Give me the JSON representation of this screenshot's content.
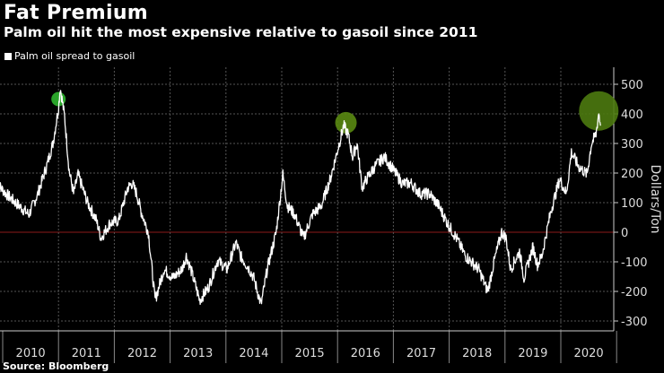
{
  "chart_data": {
    "type": "line",
    "title": "Fat Premium",
    "subtitle": "Palm oil hit the most expensive relative to gasoil since 2011",
    "ylabel": "Dollars/Ton",
    "xlabel": "",
    "ylim": [
      -330,
      560
    ],
    "xlim": [
      2009.9,
      2021.0
    ],
    "y_ticks": [
      500,
      400,
      300,
      200,
      100,
      0,
      -100,
      -200,
      -300
    ],
    "x_tick_labels": [
      "2010",
      "2011",
      "2012",
      "2013",
      "2014",
      "2015",
      "2016",
      "2017",
      "2018",
      "2019",
      "2020"
    ],
    "grid": true,
    "legend": {
      "position": "top-left",
      "entries": [
        "Palm oil spread to gasoil"
      ]
    },
    "series": [
      {
        "name": "Palm oil spread to gasoil",
        "color": "#ffffff",
        "x": [
          2009.9,
          2010.06,
          2010.23,
          2010.47,
          2010.63,
          2010.79,
          2010.9,
          2011.0,
          2011.03,
          2011.11,
          2011.19,
          2011.27,
          2011.35,
          2011.52,
          2011.68,
          2011.76,
          2011.92,
          2012.08,
          2012.24,
          2012.32,
          2012.4,
          2012.48,
          2012.61,
          2012.73,
          2012.89,
          2013.05,
          2013.21,
          2013.29,
          2013.37,
          2013.53,
          2013.69,
          2013.85,
          2014.02,
          2014.18,
          2014.26,
          2014.42,
          2014.5,
          2014.63,
          2014.74,
          2014.9,
          2015.02,
          2015.1,
          2015.23,
          2015.39,
          2015.55,
          2015.71,
          2015.87,
          2015.95,
          2016.11,
          2016.19,
          2016.27,
          2016.35,
          2016.44,
          2016.52,
          2016.68,
          2016.84,
          2017.0,
          2017.16,
          2017.32,
          2017.48,
          2017.65,
          2017.81,
          2017.97,
          2018.13,
          2018.29,
          2018.53,
          2018.69,
          2018.81,
          2018.94,
          2019.02,
          2019.1,
          2019.26,
          2019.34,
          2019.5,
          2019.58,
          2019.66,
          2019.82,
          2019.98,
          2020.1,
          2020.19,
          2020.31,
          2020.47,
          2020.55,
          2020.63,
          2020.68,
          2020.71
        ],
        "y": [
          165,
          130,
          100,
          60,
          130,
          225,
          300,
          420,
          490,
          390,
          210,
          130,
          195,
          100,
          40,
          -20,
          30,
          40,
          150,
          165,
          130,
          70,
          0,
          -230,
          -125,
          -155,
          -125,
          -80,
          -125,
          -230,
          -185,
          -95,
          -125,
          -35,
          -80,
          -125,
          -155,
          -245,
          -125,
          0,
          195,
          90,
          60,
          -20,
          60,
          90,
          180,
          240,
          360,
          330,
          255,
          300,
          150,
          180,
          225,
          255,
          210,
          165,
          165,
          130,
          130,
          90,
          30,
          -20,
          -80,
          -125,
          -200,
          -95,
          0,
          -20,
          -125,
          -65,
          -155,
          -50,
          -110,
          -80,
          70,
          180,
          130,
          270,
          225,
          195,
          300,
          330,
          405,
          360
        ]
      }
    ],
    "annotations": [
      {
        "type": "highlight-circle",
        "x": 2011.0,
        "y": 450,
        "color": "#2fb52f",
        "size": "small"
      },
      {
        "type": "highlight-circle",
        "x": 2016.15,
        "y": 370,
        "color": "#5a8a12",
        "size": "medium"
      },
      {
        "type": "highlight-circle",
        "x": 2020.68,
        "y": 410,
        "color": "#4d7a0f",
        "size": "large"
      }
    ],
    "zero_line_color": "#8b1a1a",
    "source": "Source: Bloomberg"
  }
}
